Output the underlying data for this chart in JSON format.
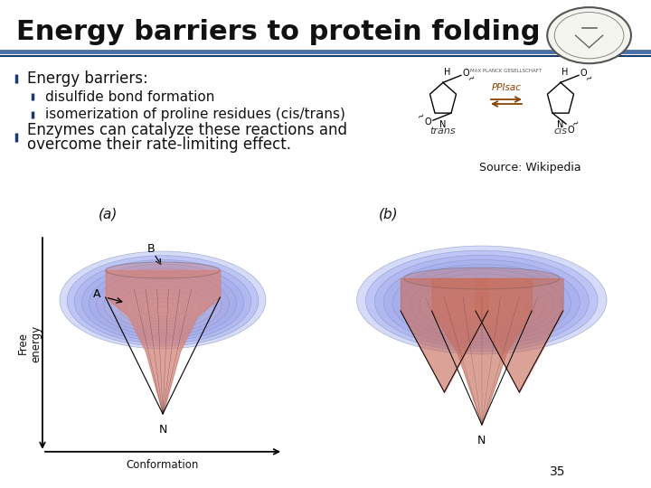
{
  "title": "Energy barriers to protein folding",
  "title_fontsize": 22,
  "title_color": "#111111",
  "background_color": "#ffffff",
  "header_line_color1": "#4a6fa5",
  "header_line_color2": "#1a3a6a",
  "bullet_color": "#1a3a6a",
  "bullet1_main": "Energy barriers:",
  "bullet1_sub1": "disulfide bond formation",
  "bullet1_sub2": "isomerization of proline residues (cis/trans)",
  "bullet2_line1": "Enzymes can catalyze these reactions and",
  "bullet2_line2": "overcome their rate-limiting effect.",
  "label_a": "(a)",
  "label_b": "(b)",
  "source_text": "Source: Wikipedia",
  "page_number": "35",
  "free_energy_label": "Free\nenergy",
  "conformation_label": "Conformation",
  "text_color": "#111111",
  "sub_bullet_color": "#1a3a6a",
  "font_family": "DejaVu Sans",
  "trans_label": "trans",
  "cis_label": "cis",
  "ppisac_label": "PPIsac",
  "N_label": "N",
  "A_label": "A",
  "B_label": "B"
}
